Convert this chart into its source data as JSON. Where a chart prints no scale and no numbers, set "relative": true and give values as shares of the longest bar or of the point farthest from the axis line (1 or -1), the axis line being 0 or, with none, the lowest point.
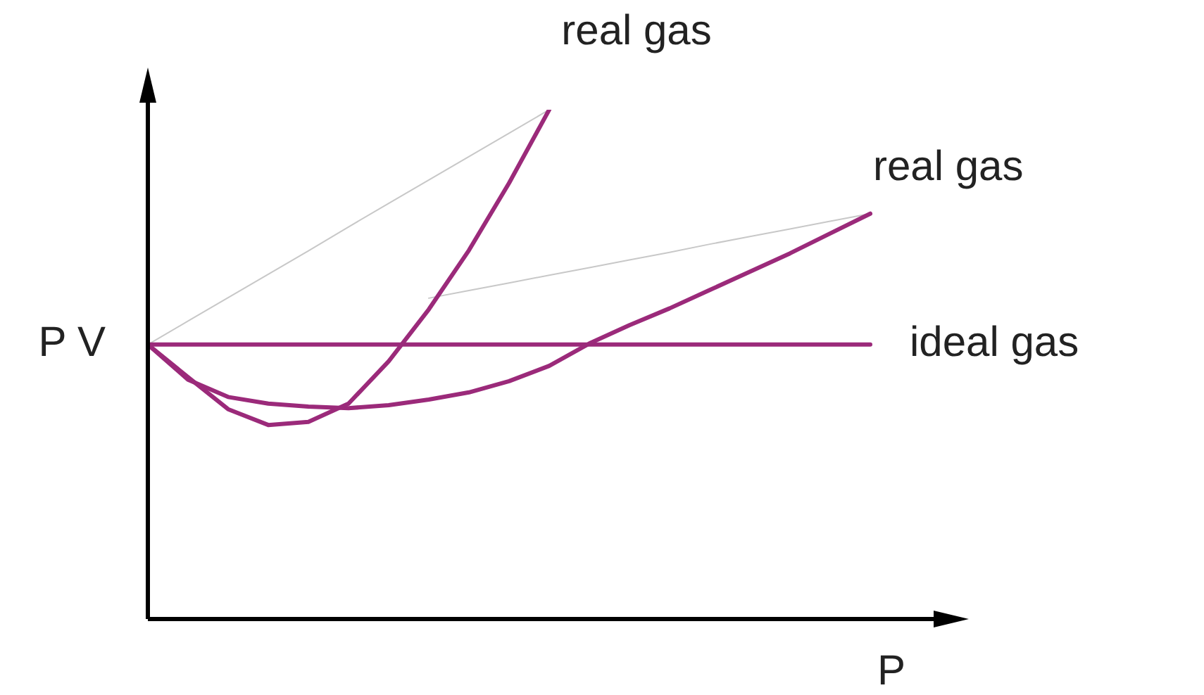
{
  "chart_data": {
    "type": "line",
    "xlabel": "P",
    "ylabel": "P V",
    "relative": true,
    "legend": false,
    "marker": "none",
    "tick_labels": false,
    "categories": [
      null,
      null,
      null,
      null,
      null,
      null,
      null,
      null,
      null,
      null,
      null,
      null,
      null,
      null,
      null,
      null,
      null,
      null,
      null
    ],
    "series": [
      {
        "name": "real gas",
        "color": "#9b2a7a",
        "values": [
          0.539,
          0.475,
          0.412,
          0.381,
          0.387,
          0.423,
          0.506,
          0.608,
          0.724,
          0.856,
          1,
          null,
          null,
          null,
          null,
          null,
          null,
          null,
          null
        ]
      },
      {
        "name": "real gas",
        "color": "#9b2a7a",
        "values": [
          0.539,
          0.47,
          0.436,
          0.423,
          0.417,
          0.414,
          0.42,
          0.431,
          0.445,
          0.467,
          0.497,
          0.541,
          0.577,
          0.61,
          0.646,
          0.682,
          0.718,
          0.757,
          0.796
        ]
      },
      {
        "name": "ideal gas",
        "color": "#9b2a7a",
        "values": [
          0.539,
          0.539,
          0.539,
          0.539,
          0.539,
          0.539,
          0.539,
          0.539,
          0.539,
          0.539,
          0.539,
          0.539,
          0.539,
          0.539,
          0.539,
          0.539,
          0.539,
          0.539,
          0.539
        ]
      },
      {
        "color": "#c8c8c8",
        "values": [
          0.539,
          0.585,
          0.631,
          0.677,
          0.723,
          0.77,
          0.816,
          0.862,
          0.908,
          0.954,
          1,
          null,
          null,
          null,
          null,
          null,
          null,
          null,
          null
        ]
      },
      {
        "color": "#c8c8c8",
        "values": [
          null,
          null,
          null,
          null,
          null,
          null,
          null,
          0.63,
          0.645,
          0.66,
          0.675,
          0.69,
          0.705,
          0.72,
          0.736,
          0.751,
          0.766,
          0.781,
          0.796
        ]
      }
    ]
  }
}
